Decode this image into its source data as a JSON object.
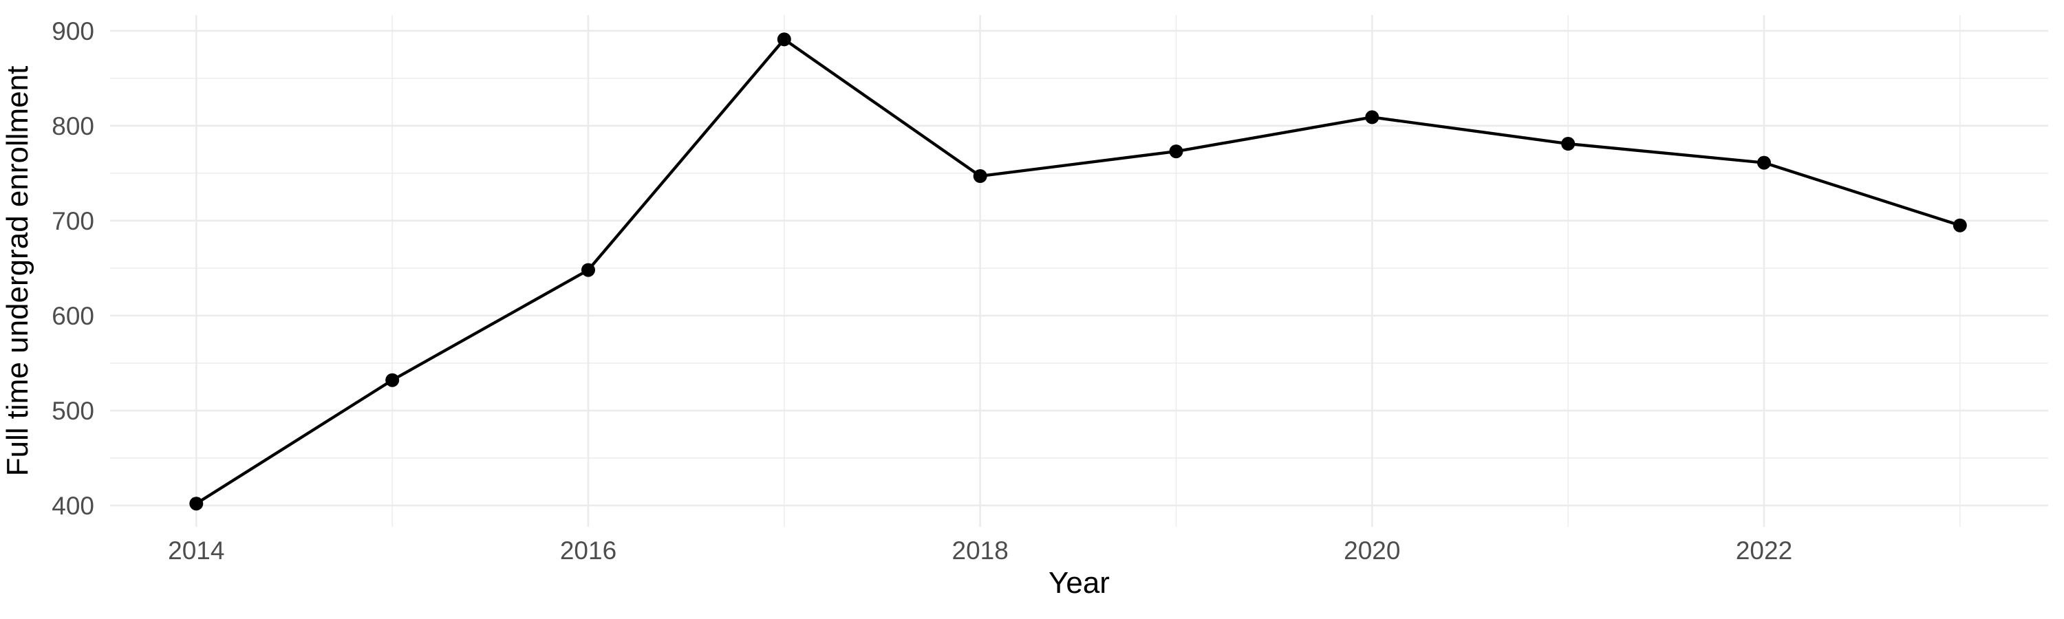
{
  "chart_data": {
    "type": "line",
    "title": "",
    "xlabel": "Year",
    "ylabel": "Full time undergrad enrollment",
    "x": [
      2014,
      2015,
      2016,
      2017,
      2018,
      2019,
      2020,
      2021,
      2022,
      2023
    ],
    "values": [
      402,
      532,
      648,
      891,
      747,
      773,
      809,
      781,
      761,
      695
    ],
    "series_name": "Full time undergrad enrollment",
    "x_major_ticks": [
      2014,
      2016,
      2018,
      2020,
      2022
    ],
    "x_minor_gridlines": [
      2015,
      2017,
      2019,
      2021,
      2023
    ],
    "y_major_ticks": [
      400,
      500,
      600,
      700,
      800,
      900
    ],
    "y_minor_gridlines": [
      450,
      550,
      650,
      750,
      850
    ],
    "xlim": [
      2013.56,
      2023.45
    ],
    "ylim": [
      377.5,
      916.5
    ],
    "grid": true,
    "legend": false,
    "style": {
      "background_color": "#ffffff",
      "grid_color": "#ebebeb",
      "line_color": "#000000",
      "point_color": "#000000",
      "tick_label_color": "#4d4d4d",
      "axis_title_color": "#000000"
    }
  }
}
